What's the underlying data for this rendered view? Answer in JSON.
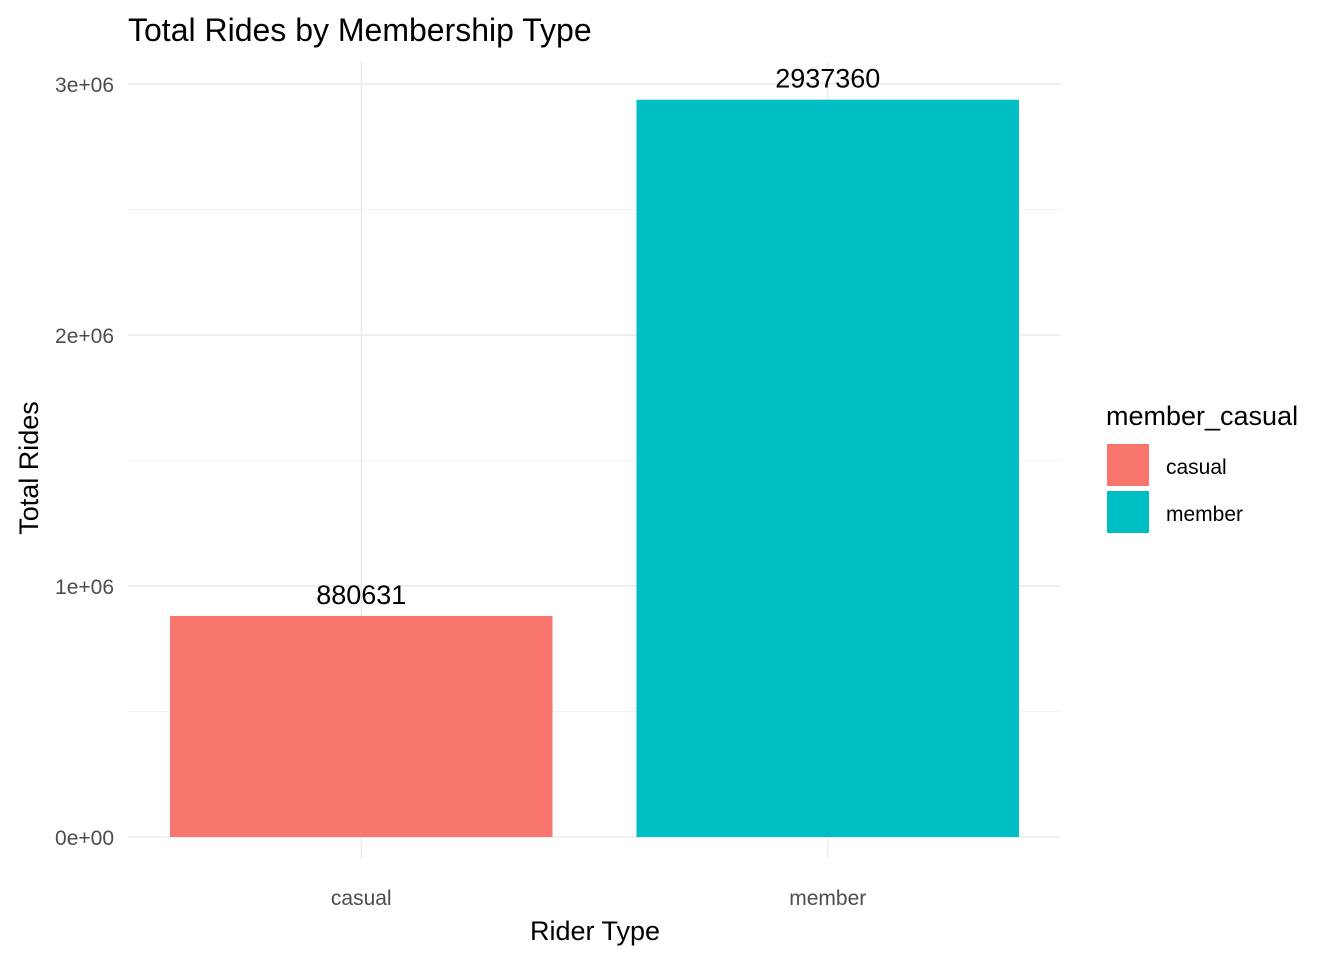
{
  "chart_data": {
    "type": "bar",
    "title": "Total Rides by Membership Type",
    "xlabel": "Rider Type",
    "ylabel": "Total Rides",
    "categories": [
      "casual",
      "member"
    ],
    "values": [
      880631,
      2937360
    ],
    "data_labels": [
      "880631",
      "2937360"
    ],
    "colors": [
      "#F8766D",
      "#00BFC4"
    ],
    "ylim": [
      0,
      3000000
    ],
    "y_ticks": [
      0,
      1000000,
      2000000,
      3000000
    ],
    "y_tick_labels": [
      "0e+00",
      "1e+06",
      "2e+06",
      "3e+06"
    ],
    "grid": true,
    "legend": {
      "title": "member_casual",
      "placement": "right",
      "items": [
        {
          "label": "casual",
          "color": "#F8766D"
        },
        {
          "label": "member",
          "color": "#00BFC4"
        }
      ]
    }
  }
}
